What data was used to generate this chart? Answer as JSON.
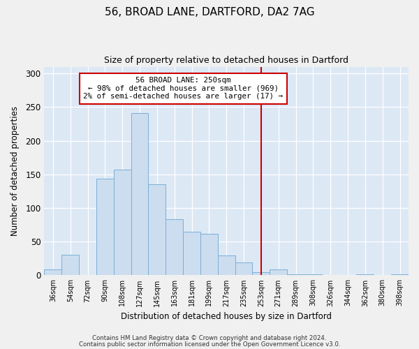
{
  "title": "56, BROAD LANE, DARTFORD, DA2 7AG",
  "subtitle": "Size of property relative to detached houses in Dartford",
  "xlabel": "Distribution of detached houses by size in Dartford",
  "ylabel": "Number of detached properties",
  "bar_labels": [
    "36sqm",
    "54sqm",
    "72sqm",
    "90sqm",
    "108sqm",
    "127sqm",
    "145sqm",
    "163sqm",
    "181sqm",
    "199sqm",
    "217sqm",
    "235sqm",
    "253sqm",
    "271sqm",
    "289sqm",
    "308sqm",
    "326sqm",
    "344sqm",
    "362sqm",
    "380sqm",
    "398sqm"
  ],
  "bar_values": [
    9,
    31,
    0,
    144,
    157,
    241,
    135,
    83,
    65,
    62,
    29,
    19,
    5,
    9,
    1,
    1,
    0,
    0,
    1,
    0,
    1
  ],
  "bar_color": "#ccddf0",
  "bar_edge_color": "#7aafd4",
  "vline_x": 12,
  "vline_color": "#cc0000",
  "annotation_title": "56 BROAD LANE: 250sqm",
  "annotation_line1": "← 98% of detached houses are smaller (969)",
  "annotation_line2": "2% of semi-detached houses are larger (17) →",
  "annotation_box_color": "#ffffff",
  "annotation_box_edge": "#cc0000",
  "ylim": [
    0,
    310
  ],
  "yticks": [
    0,
    50,
    100,
    150,
    200,
    250,
    300
  ],
  "bg_color": "#dde8f5",
  "fig_bg_color": "#f0f0f0",
  "footer1": "Contains HM Land Registry data © Crown copyright and database right 2024.",
  "footer2": "Contains public sector information licensed under the Open Government Licence v3.0."
}
